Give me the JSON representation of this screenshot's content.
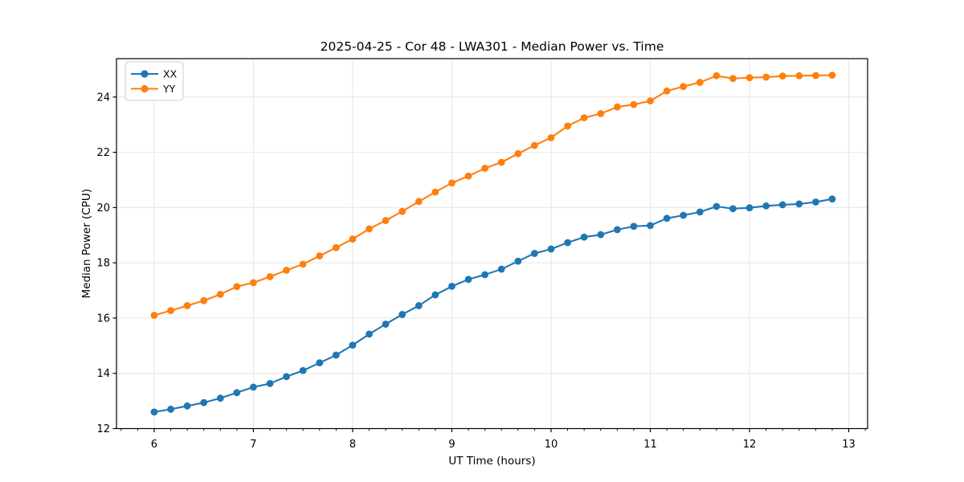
{
  "figure": {
    "title": "2025-04-25 - Cor 48 - LWA301 - Median Power vs. Time"
  },
  "chart_data": {
    "type": "line",
    "title": "2025-04-25 - Cor 48 - LWA301 - Median Power vs. Time",
    "xlabel": "UT Time (hours)",
    "ylabel": "Median Power (CPU)",
    "xlim": [
      5.62,
      13.19
    ],
    "ylim": [
      12.0,
      25.39
    ],
    "xticks": [
      6,
      7,
      8,
      9,
      10,
      11,
      12,
      13
    ],
    "yticks": [
      12,
      14,
      16,
      18,
      20,
      22,
      24
    ],
    "x_minor_step": 0.16667,
    "grid": true,
    "legend_position": "upper-left",
    "background_color": "#ffffff",
    "grid_color": "#e6e6e6",
    "spine_color": "#000000",
    "x": [
      6.0,
      6.167,
      6.333,
      6.5,
      6.667,
      6.833,
      7.0,
      7.167,
      7.333,
      7.5,
      7.667,
      7.833,
      8.0,
      8.167,
      8.333,
      8.5,
      8.667,
      8.833,
      9.0,
      9.167,
      9.333,
      9.5,
      9.667,
      9.833,
      10.0,
      10.167,
      10.333,
      10.5,
      10.667,
      10.833,
      11.0,
      11.167,
      11.333,
      11.5,
      11.667,
      11.833,
      12.0,
      12.167,
      12.333,
      12.5,
      12.667,
      12.833
    ],
    "series": [
      {
        "name": "XX",
        "color": "#1f77b4",
        "values": [
          12.6,
          12.7,
          12.82,
          12.94,
          13.1,
          13.3,
          13.5,
          13.63,
          13.88,
          14.1,
          14.38,
          14.66,
          15.02,
          15.42,
          15.78,
          16.13,
          16.45,
          16.84,
          17.15,
          17.4,
          17.57,
          17.77,
          18.06,
          18.34,
          18.5,
          18.73,
          18.93,
          19.02,
          19.2,
          19.32,
          19.35,
          19.61,
          19.72,
          19.84,
          20.04,
          19.96,
          19.99,
          20.06,
          20.1,
          20.13,
          20.2,
          20.31
        ]
      },
      {
        "name": "YY",
        "color": "#ff7f0e",
        "values": [
          16.1,
          16.27,
          16.45,
          16.63,
          16.86,
          17.14,
          17.28,
          17.5,
          17.73,
          17.95,
          18.25,
          18.55,
          18.86,
          19.23,
          19.53,
          19.86,
          20.22,
          20.56,
          20.89,
          21.14,
          21.42,
          21.64,
          21.95,
          22.25,
          22.53,
          22.95,
          23.25,
          23.4,
          23.64,
          23.73,
          23.86,
          24.22,
          24.38,
          24.53,
          24.77,
          24.67,
          24.7,
          24.72,
          24.76,
          24.77,
          24.78,
          24.79
        ]
      }
    ]
  }
}
